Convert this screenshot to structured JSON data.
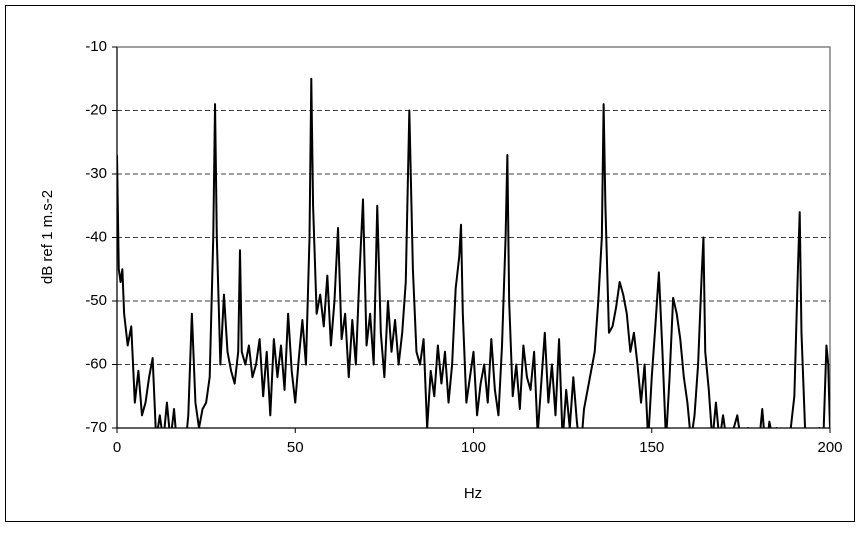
{
  "chart_data": {
    "type": "line",
    "x_label": "Hz",
    "y_label": "dB ref 1 m.s-2",
    "xlim": [
      0,
      200
    ],
    "xticks": [
      0,
      50,
      100,
      150,
      200
    ],
    "ylim": [
      -70,
      -10
    ],
    "yticks": [
      -70,
      -60,
      -50,
      -40,
      -30,
      -20,
      -10
    ],
    "grid": true,
    "series": [
      {
        "color": "#000000",
        "x": [
          0,
          0.5,
          1,
          1.5,
          2,
          3,
          4,
          5,
          6,
          7,
          8,
          9,
          10,
          11,
          12,
          13,
          14,
          15,
          16,
          17,
          18,
          19,
          20,
          21,
          22,
          23,
          24,
          25,
          26,
          27,
          27.5,
          28,
          29,
          30,
          31,
          32,
          33,
          34,
          34.5,
          35,
          36,
          37,
          38,
          39,
          40,
          41,
          42,
          43,
          44,
          45,
          46,
          47,
          48,
          49,
          50,
          51,
          52,
          53,
          54,
          54.5,
          55,
          56,
          57,
          58,
          59,
          60,
          61,
          62,
          63,
          64,
          65,
          66,
          67,
          68,
          69,
          70,
          71,
          72,
          73,
          74,
          75,
          76,
          77,
          78,
          79,
          80,
          81,
          82,
          83,
          84,
          85,
          86,
          87,
          88,
          89,
          90,
          91,
          92,
          93,
          94,
          95,
          96,
          96.5,
          97,
          98,
          99,
          100,
          101,
          102,
          103,
          104,
          105,
          106,
          107,
          108,
          109,
          109.5,
          110,
          111,
          112,
          113,
          114,
          115,
          116,
          117,
          118,
          119,
          120,
          121,
          122,
          123,
          124,
          125,
          126,
          127,
          128,
          129,
          130,
          131,
          132,
          133,
          134,
          135,
          136,
          136.5,
          137,
          138,
          139,
          140,
          141,
          142,
          143,
          144,
          145,
          146,
          147,
          148,
          149,
          150,
          151,
          152,
          153,
          154,
          155,
          156,
          157,
          158,
          159,
          160,
          161,
          162,
          163,
          164,
          164.5,
          165,
          166,
          167,
          168,
          169,
          170,
          171,
          172,
          173,
          174,
          175,
          176,
          177,
          178,
          179,
          180,
          181,
          182,
          183,
          184,
          185,
          186,
          187,
          188,
          189,
          190,
          191,
          191.5,
          192,
          193,
          194,
          195,
          196,
          197,
          198,
          199,
          199.5,
          200
        ],
        "values": [
          -27,
          -45,
          -47,
          -45,
          -52,
          -57,
          -54,
          -66,
          -61,
          -68,
          -66,
          -62,
          -59,
          -72,
          -68,
          -72,
          -66,
          -72,
          -67,
          -74,
          -72,
          -74,
          -68,
          -52,
          -66,
          -70,
          -67,
          -66,
          -62,
          -40,
          -19,
          -40,
          -60,
          -49,
          -58,
          -61,
          -63,
          -58,
          -42,
          -58,
          -60,
          -57,
          -62,
          -60,
          -56,
          -65,
          -58,
          -68,
          -56,
          -62,
          -57,
          -64,
          -52,
          -61,
          -66,
          -59,
          -53,
          -60,
          -40,
          -15,
          -35,
          -52,
          -49,
          -54,
          -46,
          -57,
          -50,
          -38.5,
          -56,
          -52,
          -62,
          -53,
          -60,
          -46,
          -34,
          -57,
          -52,
          -60,
          -35,
          -55,
          -62,
          -50,
          -58,
          -53,
          -60,
          -55,
          -47,
          -20,
          -45,
          -58,
          -60,
          -56,
          -70,
          -61,
          -65,
          -57,
          -63,
          -58,
          -66,
          -60,
          -48,
          -43,
          -38,
          -52,
          -66,
          -62,
          -58,
          -68,
          -63,
          -60,
          -66,
          -56,
          -64,
          -68,
          -57,
          -40,
          -27,
          -50,
          -65,
          -60,
          -67,
          -57,
          -62,
          -64,
          -58,
          -71,
          -63,
          -55,
          -66,
          -60,
          -68,
          -56,
          -72,
          -64,
          -70,
          -62,
          -69,
          -74,
          -67,
          -64,
          -61,
          -58,
          -50,
          -40,
          -19,
          -35,
          -55,
          -54,
          -51,
          -47,
          -49,
          -52,
          -58,
          -55,
          -60,
          -66,
          -60,
          -72,
          -62,
          -54,
          -45.5,
          -58,
          -72,
          -62,
          -49.5,
          -52,
          -56,
          -62,
          -66,
          -72,
          -68,
          -60,
          -46,
          -40,
          -58,
          -64,
          -72,
          -66,
          -72,
          -68,
          -72,
          -74,
          -70,
          -68,
          -72,
          -74,
          -70,
          -72,
          -74,
          -73,
          -67,
          -74,
          -69,
          -72,
          -70,
          -74,
          -72,
          -73,
          -70,
          -65,
          -45,
          -36,
          -55,
          -70,
          -74,
          -72,
          -74,
          -70,
          -74,
          -57,
          -60,
          -70
        ]
      }
    ]
  }
}
